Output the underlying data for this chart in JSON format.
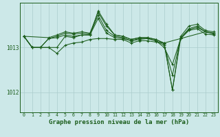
{
  "background_color": "#cce8e8",
  "grid_color": "#aacccc",
  "line_color": "#1a5c1a",
  "xlabel": "Graphe pression niveau de la mer (hPa)",
  "xlabel_fontsize": 6.5,
  "ylabel_ticks": [
    1012,
    1013
  ],
  "xlim": [
    -0.5,
    23.5
  ],
  "ylim": [
    1011.55,
    1014.0
  ],
  "xticks": [
    0,
    1,
    2,
    3,
    4,
    5,
    6,
    7,
    8,
    9,
    10,
    11,
    12,
    13,
    14,
    15,
    16,
    17,
    18,
    19,
    20,
    21,
    22,
    23
  ],
  "lines": [
    {
      "x": [
        0,
        1,
        2,
        3,
        4,
        5,
        6,
        7,
        8,
        9,
        10,
        11,
        12,
        13,
        14,
        15,
        16,
        17,
        18,
        19,
        20,
        21,
        22,
        23
      ],
      "y": [
        1013.25,
        1013.0,
        1013.0,
        1013.0,
        1012.87,
        1013.05,
        1013.1,
        1013.12,
        1013.18,
        1013.2,
        1013.2,
        1013.18,
        1013.18,
        1013.1,
        1013.15,
        1013.15,
        1013.12,
        1013.1,
        1012.05,
        1013.2,
        1013.38,
        1013.42,
        1013.3,
        1013.28
      ]
    },
    {
      "x": [
        0,
        1,
        2,
        3,
        4,
        5,
        6,
        7,
        8,
        9,
        10,
        11,
        12,
        13,
        14,
        15,
        16,
        17,
        18,
        19,
        20,
        21,
        22,
        23
      ],
      "y": [
        1013.25,
        1013.0,
        1013.0,
        1013.2,
        1013.22,
        1013.28,
        1013.25,
        1013.28,
        1013.28,
        1013.65,
        1013.32,
        1013.22,
        1013.2,
        1013.15,
        1013.18,
        1013.2,
        1013.15,
        1013.0,
        1012.62,
        1013.2,
        1013.4,
        1013.45,
        1013.35,
        1013.3
      ]
    },
    {
      "x": [
        0,
        1,
        2,
        3,
        4,
        5,
        6,
        7,
        8,
        9,
        10,
        11,
        12,
        13,
        14,
        15,
        16,
        17,
        18,
        19,
        20,
        21,
        22,
        23
      ],
      "y": [
        1013.25,
        1013.0,
        1013.0,
        1013.2,
        1013.25,
        1013.32,
        1013.3,
        1013.32,
        1013.3,
        1013.72,
        1013.38,
        1013.25,
        1013.22,
        1013.15,
        1013.2,
        1013.2,
        1013.15,
        1013.05,
        1012.38,
        1013.22,
        1013.42,
        1013.48,
        1013.35,
        1013.32
      ]
    },
    {
      "x": [
        0,
        3,
        4,
        5,
        6,
        7,
        8,
        9,
        10,
        11,
        12,
        13,
        14,
        15,
        16,
        17,
        18,
        19,
        20,
        21,
        22,
        23
      ],
      "y": [
        1013.25,
        1013.22,
        1013.28,
        1013.35,
        1013.32,
        1013.35,
        1013.32,
        1013.78,
        1013.48,
        1013.28,
        1013.25,
        1013.18,
        1013.22,
        1013.22,
        1013.18,
        1013.08,
        1012.05,
        1013.25,
        1013.48,
        1013.52,
        1013.38,
        1013.35
      ]
    },
    {
      "x": [
        0,
        1,
        2,
        3,
        4,
        5,
        6,
        7,
        8,
        9,
        10,
        11,
        12,
        13,
        14,
        15,
        16,
        17,
        22,
        23
      ],
      "y": [
        1013.25,
        1013.0,
        1013.0,
        1013.0,
        1013.0,
        1013.25,
        1013.22,
        1013.28,
        1013.28,
        1013.82,
        1013.52,
        1013.28,
        1013.25,
        1013.18,
        1013.22,
        1013.22,
        1013.18,
        1013.1,
        1013.35,
        1013.32
      ]
    }
  ]
}
